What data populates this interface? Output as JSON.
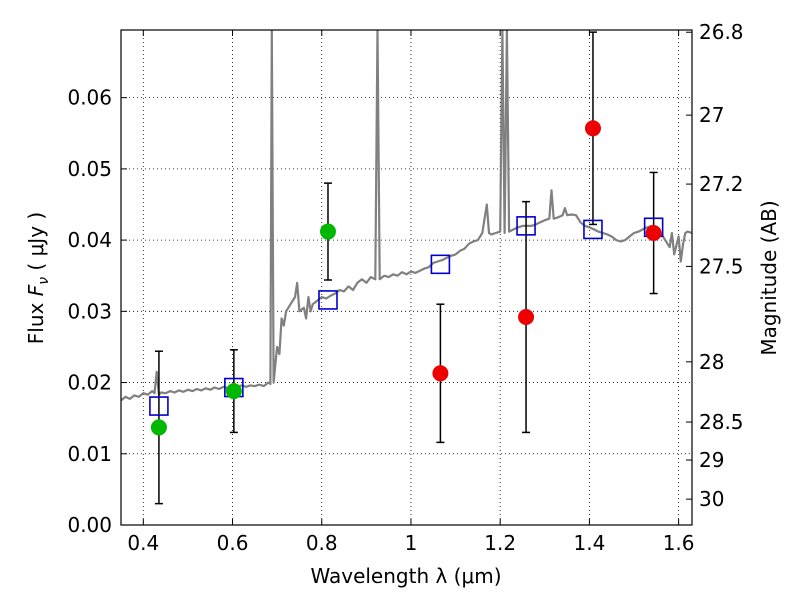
{
  "chart_data": {
    "type": "scatter",
    "title": "",
    "xlabel": "Wavelength  λ (μm)",
    "ylabel_left_prefix": "Flux  ",
    "ylabel_left_symbol": "F",
    "ylabel_left_sub": "ν",
    "ylabel_left_suffix": "  ( μJy )",
    "ylabel_right": "Magnitude (AB)",
    "xlim": [
      0.35,
      1.63
    ],
    "ylim": [
      0.0,
      0.0695
    ],
    "grid": true,
    "x_ticks": [
      {
        "value": 0.4,
        "label": "0.4"
      },
      {
        "value": 0.6,
        "label": "0.6"
      },
      {
        "value": 0.8,
        "label": "0.8"
      },
      {
        "value": 1.0,
        "label": "1"
      },
      {
        "value": 1.2,
        "label": "1.2"
      },
      {
        "value": 1.4,
        "label": "1.4"
      },
      {
        "value": 1.6,
        "label": "1.6"
      }
    ],
    "y_ticks": [
      {
        "value": 0.0,
        "label": "0.00"
      },
      {
        "value": 0.01,
        "label": "0.01"
      },
      {
        "value": 0.02,
        "label": "0.02"
      },
      {
        "value": 0.03,
        "label": "0.03"
      },
      {
        "value": 0.04,
        "label": "0.04"
      },
      {
        "value": 0.05,
        "label": "0.05"
      },
      {
        "value": 0.06,
        "label": "0.06"
      }
    ],
    "right_ticks": [
      {
        "value": 26.8,
        "label": "26.8"
      },
      {
        "value": 27.0,
        "label": "27"
      },
      {
        "value": 27.2,
        "label": "27.2"
      },
      {
        "value": 27.5,
        "label": "27.5"
      },
      {
        "value": 28.0,
        "label": "28"
      },
      {
        "value": 28.5,
        "label": "28.5"
      },
      {
        "value": 29.0,
        "label": "29"
      },
      {
        "value": 30.0,
        "label": "30"
      }
    ],
    "right_ticks_order": "increasing magnitude toward the bottom (flux = 3631e6 * 10^(-0.4 * mag) μJy)",
    "series": [
      {
        "kind": "line",
        "color": "#808080",
        "points": [
          [
            0.35,
            0.0175
          ],
          [
            0.36,
            0.018
          ],
          [
            0.37,
            0.0177
          ],
          [
            0.38,
            0.0182
          ],
          [
            0.39,
            0.018
          ],
          [
            0.4,
            0.0185
          ],
          [
            0.41,
            0.0183
          ],
          [
            0.42,
            0.0188
          ],
          [
            0.425,
            0.0185
          ],
          [
            0.43,
            0.0215
          ],
          [
            0.435,
            0.0183
          ],
          [
            0.44,
            0.0186
          ],
          [
            0.45,
            0.0185
          ],
          [
            0.46,
            0.0188
          ],
          [
            0.47,
            0.0186
          ],
          [
            0.48,
            0.0189
          ],
          [
            0.49,
            0.0187
          ],
          [
            0.5,
            0.019
          ],
          [
            0.51,
            0.0188
          ],
          [
            0.52,
            0.0191
          ],
          [
            0.53,
            0.0189
          ],
          [
            0.54,
            0.0192
          ],
          [
            0.55,
            0.019
          ],
          [
            0.56,
            0.0193
          ],
          [
            0.57,
            0.0191
          ],
          [
            0.58,
            0.0194
          ],
          [
            0.59,
            0.0192
          ],
          [
            0.6,
            0.0195
          ],
          [
            0.61,
            0.0193
          ],
          [
            0.62,
            0.0196
          ],
          [
            0.63,
            0.0194
          ],
          [
            0.64,
            0.0196
          ],
          [
            0.65,
            0.0195
          ],
          [
            0.66,
            0.0197
          ],
          [
            0.67,
            0.0195
          ],
          [
            0.68,
            0.02
          ],
          [
            0.685,
            0.0198
          ],
          [
            0.688,
            0.0695
          ],
          [
            0.692,
            0.02
          ],
          [
            0.7,
            0.025
          ],
          [
            0.705,
            0.024
          ],
          [
            0.71,
            0.029
          ],
          [
            0.715,
            0.028
          ],
          [
            0.72,
            0.03
          ],
          [
            0.73,
            0.031
          ],
          [
            0.74,
            0.032
          ],
          [
            0.745,
            0.034
          ],
          [
            0.75,
            0.03
          ],
          [
            0.76,
            0.0305
          ],
          [
            0.765,
            0.029
          ],
          [
            0.77,
            0.032
          ],
          [
            0.775,
            0.03
          ],
          [
            0.78,
            0.031
          ],
          [
            0.79,
            0.0315
          ],
          [
            0.8,
            0.032
          ],
          [
            0.81,
            0.0318
          ],
          [
            0.82,
            0.0322
          ],
          [
            0.83,
            0.0325
          ],
          [
            0.84,
            0.033
          ],
          [
            0.85,
            0.0328
          ],
          [
            0.86,
            0.0335
          ],
          [
            0.87,
            0.033
          ],
          [
            0.88,
            0.034
          ],
          [
            0.89,
            0.0345
          ],
          [
            0.9,
            0.034
          ],
          [
            0.91,
            0.0348
          ],
          [
            0.92,
            0.0345
          ],
          [
            0.925,
            0.0695
          ],
          [
            0.93,
            0.0345
          ],
          [
            0.94,
            0.035
          ],
          [
            0.95,
            0.0348
          ],
          [
            0.96,
            0.0352
          ],
          [
            0.97,
            0.035
          ],
          [
            0.98,
            0.0355
          ],
          [
            0.99,
            0.0352
          ],
          [
            1.0,
            0.0356
          ],
          [
            1.01,
            0.0354
          ],
          [
            1.02,
            0.0357
          ],
          [
            1.03,
            0.036
          ],
          [
            1.04,
            0.0362
          ],
          [
            1.05,
            0.0368
          ],
          [
            1.06,
            0.037
          ],
          [
            1.07,
            0.0372
          ],
          [
            1.08,
            0.0375
          ],
          [
            1.09,
            0.0378
          ],
          [
            1.1,
            0.038
          ],
          [
            1.11,
            0.0385
          ],
          [
            1.12,
            0.0388
          ],
          [
            1.13,
            0.0395
          ],
          [
            1.14,
            0.0398
          ],
          [
            1.15,
            0.04
          ],
          [
            1.16,
            0.041
          ],
          [
            1.17,
            0.045
          ],
          [
            1.175,
            0.041
          ],
          [
            1.18,
            0.0408
          ],
          [
            1.19,
            0.041
          ],
          [
            1.2,
            0.0412
          ],
          [
            1.205,
            0.0695
          ],
          [
            1.21,
            0.041
          ],
          [
            1.215,
            0.0695
          ],
          [
            1.22,
            0.0412
          ],
          [
            1.23,
            0.0415
          ],
          [
            1.24,
            0.0418
          ],
          [
            1.25,
            0.042
          ],
          [
            1.26,
            0.042
          ],
          [
            1.27,
            0.042
          ],
          [
            1.28,
            0.0422
          ],
          [
            1.29,
            0.0425
          ],
          [
            1.3,
            0.0428
          ],
          [
            1.31,
            0.043
          ],
          [
            1.315,
            0.047
          ],
          [
            1.32,
            0.043
          ],
          [
            1.33,
            0.0432
          ],
          [
            1.34,
            0.0435
          ],
          [
            1.345,
            0.0445
          ],
          [
            1.35,
            0.0435
          ],
          [
            1.36,
            0.0436
          ],
          [
            1.37,
            0.0435
          ],
          [
            1.38,
            0.0425
          ],
          [
            1.39,
            0.042
          ],
          [
            1.4,
            0.0418
          ],
          [
            1.41,
            0.0415
          ],
          [
            1.42,
            0.0412
          ],
          [
            1.43,
            0.041
          ],
          [
            1.44,
            0.0408
          ],
          [
            1.45,
            0.0405
          ],
          [
            1.46,
            0.04
          ],
          [
            1.47,
            0.0398
          ],
          [
            1.48,
            0.04
          ],
          [
            1.49,
            0.0405
          ],
          [
            1.5,
            0.041
          ],
          [
            1.51,
            0.0412
          ],
          [
            1.52,
            0.0415
          ],
          [
            1.53,
            0.0418
          ],
          [
            1.54,
            0.042
          ],
          [
            1.55,
            0.0415
          ],
          [
            1.56,
            0.041
          ],
          [
            1.57,
            0.04
          ],
          [
            1.58,
            0.039
          ],
          [
            1.585,
            0.041
          ],
          [
            1.59,
            0.038
          ],
          [
            1.6,
            0.0405
          ],
          [
            1.605,
            0.037
          ],
          [
            1.61,
            0.0395
          ],
          [
            1.615,
            0.041
          ],
          [
            1.62,
            0.0412
          ],
          [
            1.63,
            0.041
          ]
        ]
      },
      {
        "kind": "points",
        "marker": "open-square",
        "color": "#0000cc",
        "points": [
          [
            0.435,
            0.0167
          ],
          [
            0.603,
            0.0193
          ],
          [
            0.814,
            0.0316
          ],
          [
            1.066,
            0.0366
          ],
          [
            1.258,
            0.042
          ],
          [
            1.408,
            0.0415
          ],
          [
            1.544,
            0.0418
          ]
        ]
      },
      {
        "kind": "points",
        "marker": "filled-circle",
        "color": "#00b800",
        "points": [
          [
            0.435,
            0.0137,
            0.0107
          ],
          [
            0.603,
            0.0188,
            0.0058
          ],
          [
            0.814,
            0.0412,
            0.0068
          ]
        ]
      },
      {
        "kind": "points",
        "marker": "filled-circle",
        "color": "#ee0000",
        "points": [
          [
            1.066,
            0.0213,
            0.0097
          ],
          [
            1.258,
            0.0292,
            0.0162
          ],
          [
            1.408,
            0.0557,
            0.0135
          ],
          [
            1.544,
            0.041,
            0.0085
          ]
        ]
      }
    ]
  }
}
